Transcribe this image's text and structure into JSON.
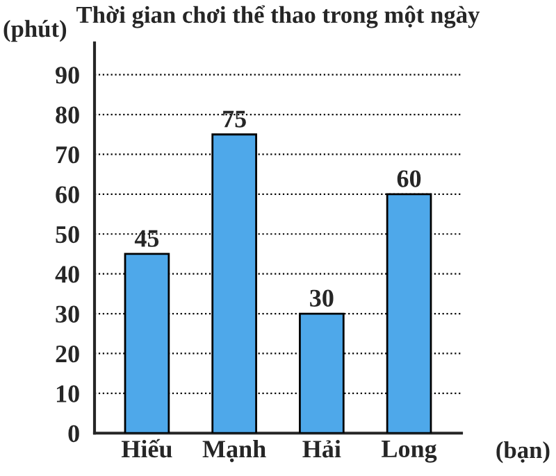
{
  "chart_data": {
    "type": "bar",
    "title": "Thời gian chơi thể thao trong một ngày",
    "xlabel": "(bạn)",
    "ylabel": "(phút)",
    "categories": [
      "Hiếu",
      "Mạnh",
      "Hải",
      "Long"
    ],
    "values": [
      45,
      75,
      30,
      60
    ],
    "color": "#4ea8ea",
    "ylim": [
      0,
      98
    ],
    "yticks": [
      0,
      10,
      20,
      30,
      40,
      50,
      60,
      70,
      80,
      90
    ],
    "grid": "y",
    "data_labels": true
  }
}
